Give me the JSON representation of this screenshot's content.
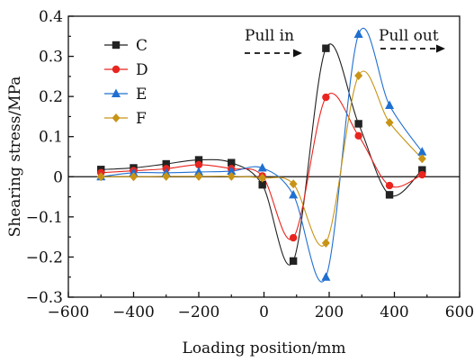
{
  "chart_data": {
    "type": "line",
    "xlabel": "Loading position/mm",
    "ylabel": "Shearing stress/MPa",
    "xlim": [
      -600,
      600
    ],
    "ylim": [
      -0.3,
      0.4
    ],
    "xticks": [
      -600,
      -400,
      -200,
      0,
      200,
      400,
      600
    ],
    "yticks": [
      -0.3,
      -0.2,
      -0.1,
      0,
      0.1,
      0.2,
      0.3,
      0.4
    ],
    "xtick_labels": [
      "−600",
      "−400",
      "−200",
      "0",
      "200",
      "400",
      "600"
    ],
    "ytick_labels": [
      "−0.3",
      "−0.2",
      "−0.1",
      "0",
      "0.1",
      "0.2",
      "0.3",
      "0.4"
    ],
    "zero_line": true,
    "grid": false,
    "legend_position": "top-left",
    "series": [
      {
        "name": "C",
        "color": "#222222",
        "marker": "square",
        "x": [
          -500,
          -400,
          -300,
          -200,
          -100,
          -5,
          90,
          190,
          290,
          385,
          485
        ],
        "y": [
          0.018,
          0.022,
          0.032,
          0.042,
          0.035,
          -0.02,
          -0.21,
          0.32,
          0.132,
          -0.045,
          0.017
        ]
      },
      {
        "name": "D",
        "color": "#e8251f",
        "marker": "circle",
        "x": [
          -500,
          -400,
          -300,
          -200,
          -100,
          -5,
          90,
          190,
          290,
          385,
          485
        ],
        "y": [
          0.01,
          0.015,
          0.02,
          0.03,
          0.02,
          0.002,
          -0.152,
          0.198,
          0.102,
          -0.022,
          0.005
        ]
      },
      {
        "name": "E",
        "color": "#1f6fd1",
        "marker": "triangle",
        "x": [
          -500,
          -400,
          -300,
          -200,
          -100,
          -5,
          90,
          190,
          290,
          385,
          485
        ],
        "y": [
          0.0,
          0.01,
          0.01,
          0.012,
          0.014,
          0.022,
          -0.045,
          -0.25,
          0.355,
          0.178,
          0.062
        ]
      },
      {
        "name": "F",
        "color": "#c89416",
        "marker": "diamond",
        "x": [
          -500,
          -400,
          -300,
          -200,
          -100,
          -5,
          90,
          190,
          290,
          385,
          485
        ],
        "y": [
          0.0,
          0.0,
          0.001,
          0.001,
          0.001,
          -0.003,
          -0.018,
          -0.165,
          0.252,
          0.135,
          0.045
        ]
      }
    ],
    "annotations": [
      {
        "text": "Pull in",
        "arrow": "dashed-right"
      },
      {
        "text": "Pull out",
        "arrow": "dashed-right"
      }
    ]
  }
}
